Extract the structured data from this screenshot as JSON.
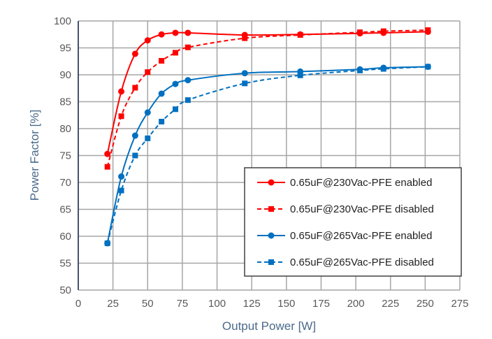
{
  "chart_data": {
    "type": "line",
    "title": "",
    "xlabel": "Output Power [W]",
    "ylabel": "Power Factor [%]",
    "xlim": [
      0,
      275
    ],
    "ylim": [
      50,
      100
    ],
    "xticks": [
      0,
      25,
      50,
      75,
      100,
      125,
      150,
      175,
      200,
      225,
      250,
      275
    ],
    "yticks": [
      50,
      55,
      60,
      65,
      70,
      75,
      80,
      85,
      90,
      95,
      100
    ],
    "grid": true,
    "legend_position": "bottom-right",
    "x": [
      21,
      31,
      41,
      50,
      60,
      70,
      79,
      120,
      160,
      203,
      220,
      252
    ],
    "series": [
      {
        "name": "0.65uF@230Vac-PFE enabled",
        "color": "#ff0000",
        "dashed": false,
        "marker": "circle",
        "values": [
          75.3,
          86.9,
          93.9,
          96.4,
          97.5,
          97.8,
          97.8,
          97.4,
          97.5,
          97.7,
          97.8,
          98.0
        ]
      },
      {
        "name": "0.65uF@230Vac-PFE disabled",
        "color": "#ff0000",
        "dashed": true,
        "marker": "square",
        "values": [
          72.9,
          82.3,
          87.6,
          90.5,
          92.6,
          94.1,
          95.1,
          96.8,
          97.4,
          97.9,
          98.1,
          98.3
        ]
      },
      {
        "name": "0.65uF@265Vac-PFE enabled",
        "color": "#0070c0",
        "dashed": false,
        "marker": "circle",
        "values": [
          58.7,
          71.1,
          78.7,
          83.0,
          86.5,
          88.3,
          89.0,
          90.3,
          90.6,
          91.0,
          91.3,
          91.5
        ]
      },
      {
        "name": "0.65uF@265Vac-PFE disabled",
        "color": "#0070c0",
        "dashed": true,
        "marker": "square",
        "values": [
          58.7,
          68.5,
          75.0,
          78.2,
          81.3,
          83.6,
          85.3,
          88.4,
          89.9,
          90.8,
          91.1,
          91.5
        ]
      }
    ]
  }
}
